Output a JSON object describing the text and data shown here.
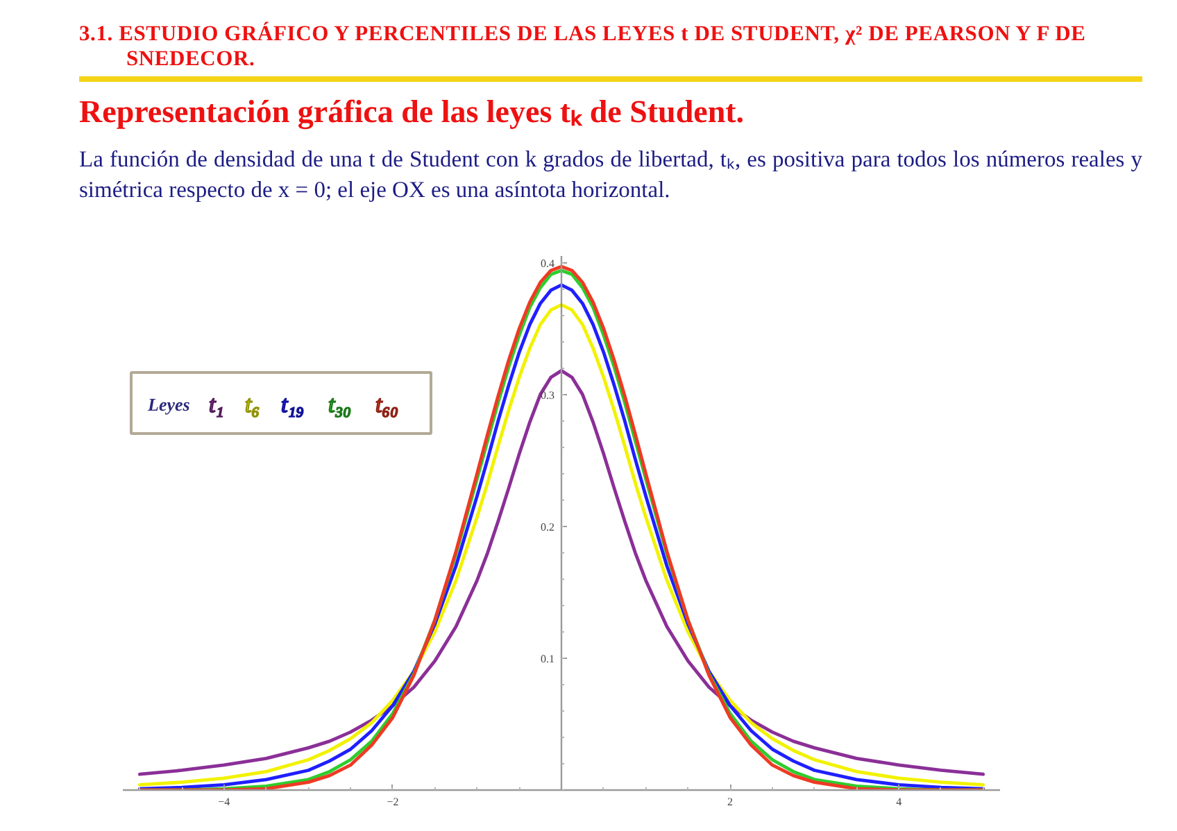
{
  "chart_data": {
    "type": "line",
    "title": "3.1. ESTUDIO GRÁFICO Y PERCENTILES DE LAS LEYES t DE STUDENT, χ² DE PEARSON Y F DE SNEDECOR.",
    "subtitle": "Representación gráfica de las leyes tₖ de Student.",
    "annotations": [
      "La función de densidad de una t de Student con k grados de libertad, tₖ, es positiva para todos los números reales y simétrica respecto de x = 0; el eje OX es una asíntota horizontal."
    ],
    "legend_title": "Leyes",
    "legend": "top left",
    "grid": false,
    "xlim": [
      -5.2,
      5.2
    ],
    "ylim": [
      0,
      0.405
    ],
    "xticks": [
      -4,
      -2,
      2,
      4
    ],
    "yticks": [
      0.1,
      0.2,
      0.3,
      0.4
    ],
    "x": [
      -5,
      -4.5,
      -4,
      -3.5,
      -3,
      -2.75,
      -2.5,
      -2.25,
      -2,
      -1.75,
      -1.5,
      -1.25,
      -1,
      -0.875,
      -0.75,
      -0.625,
      -0.5,
      -0.375,
      -0.25,
      -0.125,
      0,
      0.125,
      0.25,
      0.375,
      0.5,
      0.625,
      0.75,
      0.875,
      1,
      1.25,
      1.5,
      1.75,
      2,
      2.25,
      2.5,
      2.75,
      3,
      3.5,
      4,
      4.5,
      5
    ],
    "series": [
      {
        "name": "t₁",
        "color": "#8b2f97",
        "values": [
          0.012,
          0.015,
          0.019,
          0.024,
          0.032,
          0.037,
          0.044,
          0.053,
          0.064,
          0.078,
          0.098,
          0.124,
          0.159,
          0.18,
          0.204,
          0.229,
          0.255,
          0.279,
          0.3,
          0.313,
          0.318,
          0.313,
          0.3,
          0.279,
          0.255,
          0.229,
          0.204,
          0.18,
          0.159,
          0.124,
          0.098,
          0.078,
          0.064,
          0.053,
          0.044,
          0.037,
          0.032,
          0.024,
          0.019,
          0.015,
          0.012
        ]
      },
      {
        "name": "t₆",
        "color": "#f2f200",
        "values": [
          0.004,
          0.006,
          0.009,
          0.014,
          0.023,
          0.03,
          0.039,
          0.051,
          0.068,
          0.09,
          0.12,
          0.159,
          0.207,
          0.233,
          0.261,
          0.288,
          0.313,
          0.335,
          0.353,
          0.364,
          0.368,
          0.364,
          0.353,
          0.335,
          0.313,
          0.288,
          0.261,
          0.233,
          0.207,
          0.159,
          0.12,
          0.09,
          0.068,
          0.051,
          0.039,
          0.03,
          0.023,
          0.014,
          0.009,
          0.006,
          0.004
        ]
      },
      {
        "name": "t₁₉",
        "color": "#1f1fff",
        "values": [
          0.001,
          0.002,
          0.004,
          0.008,
          0.015,
          0.022,
          0.031,
          0.045,
          0.064,
          0.09,
          0.126,
          0.17,
          0.223,
          0.251,
          0.28,
          0.307,
          0.332,
          0.353,
          0.369,
          0.379,
          0.383,
          0.379,
          0.369,
          0.353,
          0.332,
          0.307,
          0.28,
          0.251,
          0.223,
          0.17,
          0.126,
          0.09,
          0.064,
          0.045,
          0.031,
          0.022,
          0.015,
          0.008,
          0.004,
          0.002,
          0.001
        ]
      },
      {
        "name": "t₃₀",
        "color": "#2ecc2e",
        "values": [
          0,
          0,
          0.001,
          0.003,
          0.008,
          0.014,
          0.023,
          0.037,
          0.058,
          0.088,
          0.129,
          0.179,
          0.236,
          0.265,
          0.294,
          0.321,
          0.345,
          0.366,
          0.381,
          0.391,
          0.394,
          0.391,
          0.381,
          0.366,
          0.345,
          0.321,
          0.294,
          0.265,
          0.236,
          0.179,
          0.129,
          0.088,
          0.058,
          0.037,
          0.023,
          0.014,
          0.008,
          0.003,
          0.001,
          0,
          0
        ]
      },
      {
        "name": "t₆₀",
        "color": "#ee3a24",
        "values": [
          0,
          0,
          0,
          0.001,
          0.006,
          0.011,
          0.019,
          0.034,
          0.055,
          0.087,
          0.129,
          0.181,
          0.24,
          0.27,
          0.299,
          0.326,
          0.35,
          0.37,
          0.385,
          0.394,
          0.397,
          0.394,
          0.385,
          0.37,
          0.35,
          0.326,
          0.299,
          0.27,
          0.24,
          0.181,
          0.129,
          0.087,
          0.055,
          0.034,
          0.019,
          0.011,
          0.006,
          0.001,
          0,
          0,
          0
        ]
      }
    ]
  }
}
